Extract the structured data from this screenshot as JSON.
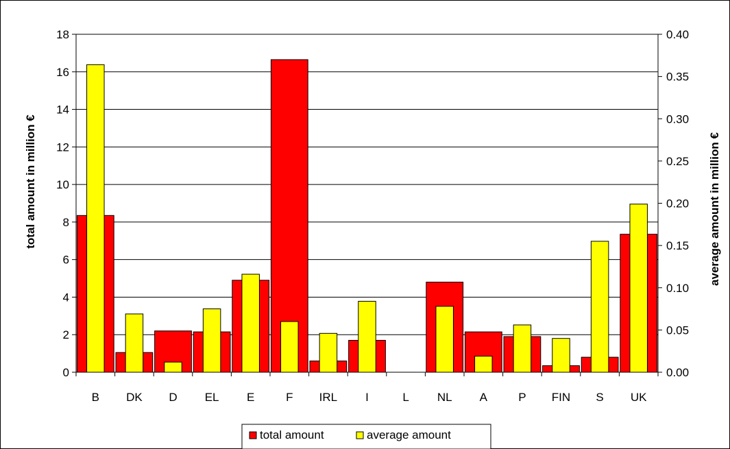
{
  "chart_data": {
    "type": "bar",
    "categories": [
      "B",
      "DK",
      "D",
      "EL",
      "E",
      "F",
      "IRL",
      "I",
      "L",
      "NL",
      "A",
      "P",
      "FIN",
      "S",
      "UK"
    ],
    "series": [
      {
        "name": "total amount",
        "axis": "left",
        "color": "#ff0000",
        "values": [
          8.35,
          1.05,
          2.2,
          2.15,
          4.9,
          16.65,
          0.6,
          1.7,
          0,
          4.8,
          2.15,
          1.9,
          0.35,
          0.8,
          7.35
        ]
      },
      {
        "name": "average amount",
        "axis": "right",
        "color": "#ffff00",
        "values": [
          0.364,
          0.069,
          0.012,
          0.075,
          0.116,
          0.06,
          0.046,
          0.084,
          0,
          0.078,
          0.019,
          0.056,
          0.04,
          0.155,
          0.199
        ]
      }
    ],
    "ylabel": "total amount in million €",
    "y2label": "average amount in million €",
    "ylim": [
      0,
      18
    ],
    "y2lim": [
      0,
      0.4
    ],
    "yticks": [
      "0",
      "2",
      "4",
      "6",
      "8",
      "10",
      "12",
      "14",
      "16",
      "18"
    ],
    "y2ticks": [
      "0.00",
      "0.05",
      "0.10",
      "0.15",
      "0.20",
      "0.25",
      "0.30",
      "0.35",
      "0.40"
    ],
    "grid": true,
    "legend_position": "bottom"
  }
}
